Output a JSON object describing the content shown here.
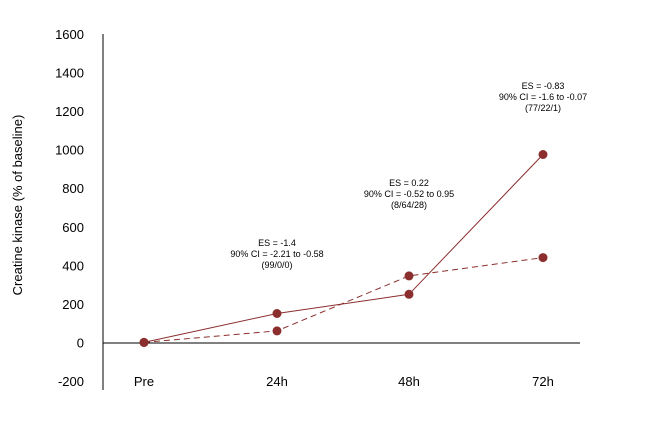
{
  "chart_data": {
    "type": "line",
    "title": "",
    "xlabel": "",
    "ylabel": "Creatine kinase (% of baseline)",
    "categories": [
      "Pre",
      "24h",
      "48h",
      "72h"
    ],
    "y_ticks": [
      "-200",
      "0",
      "200",
      "400",
      "600",
      "800",
      "1000",
      "1200",
      "1400",
      "1600"
    ],
    "ylim": [
      -200,
      1600
    ],
    "grid": false,
    "legend": "none",
    "series": [
      {
        "values": [
          0,
          150,
          250,
          975
        ],
        "style": "solid",
        "color": "#8b2e2e"
      },
      {
        "values": [
          0,
          60,
          345,
          440
        ],
        "style": "dashed",
        "color": "#8b2e2e"
      }
    ],
    "annotations": [
      {
        "category": "24h",
        "lines": [
          "ES = -1.4",
          "90% CI = -2.21 to -0.58",
          "(99/0/0)"
        ]
      },
      {
        "category": "48h",
        "lines": [
          "ES = 0.22",
          "90% CI = -0.52 to 0.95",
          "(8/64/28)"
        ]
      },
      {
        "category": "72h",
        "lines": [
          "ES = -0.83",
          "90% CI = -1.6 to -0.07",
          "(77/22/1)"
        ]
      }
    ]
  }
}
